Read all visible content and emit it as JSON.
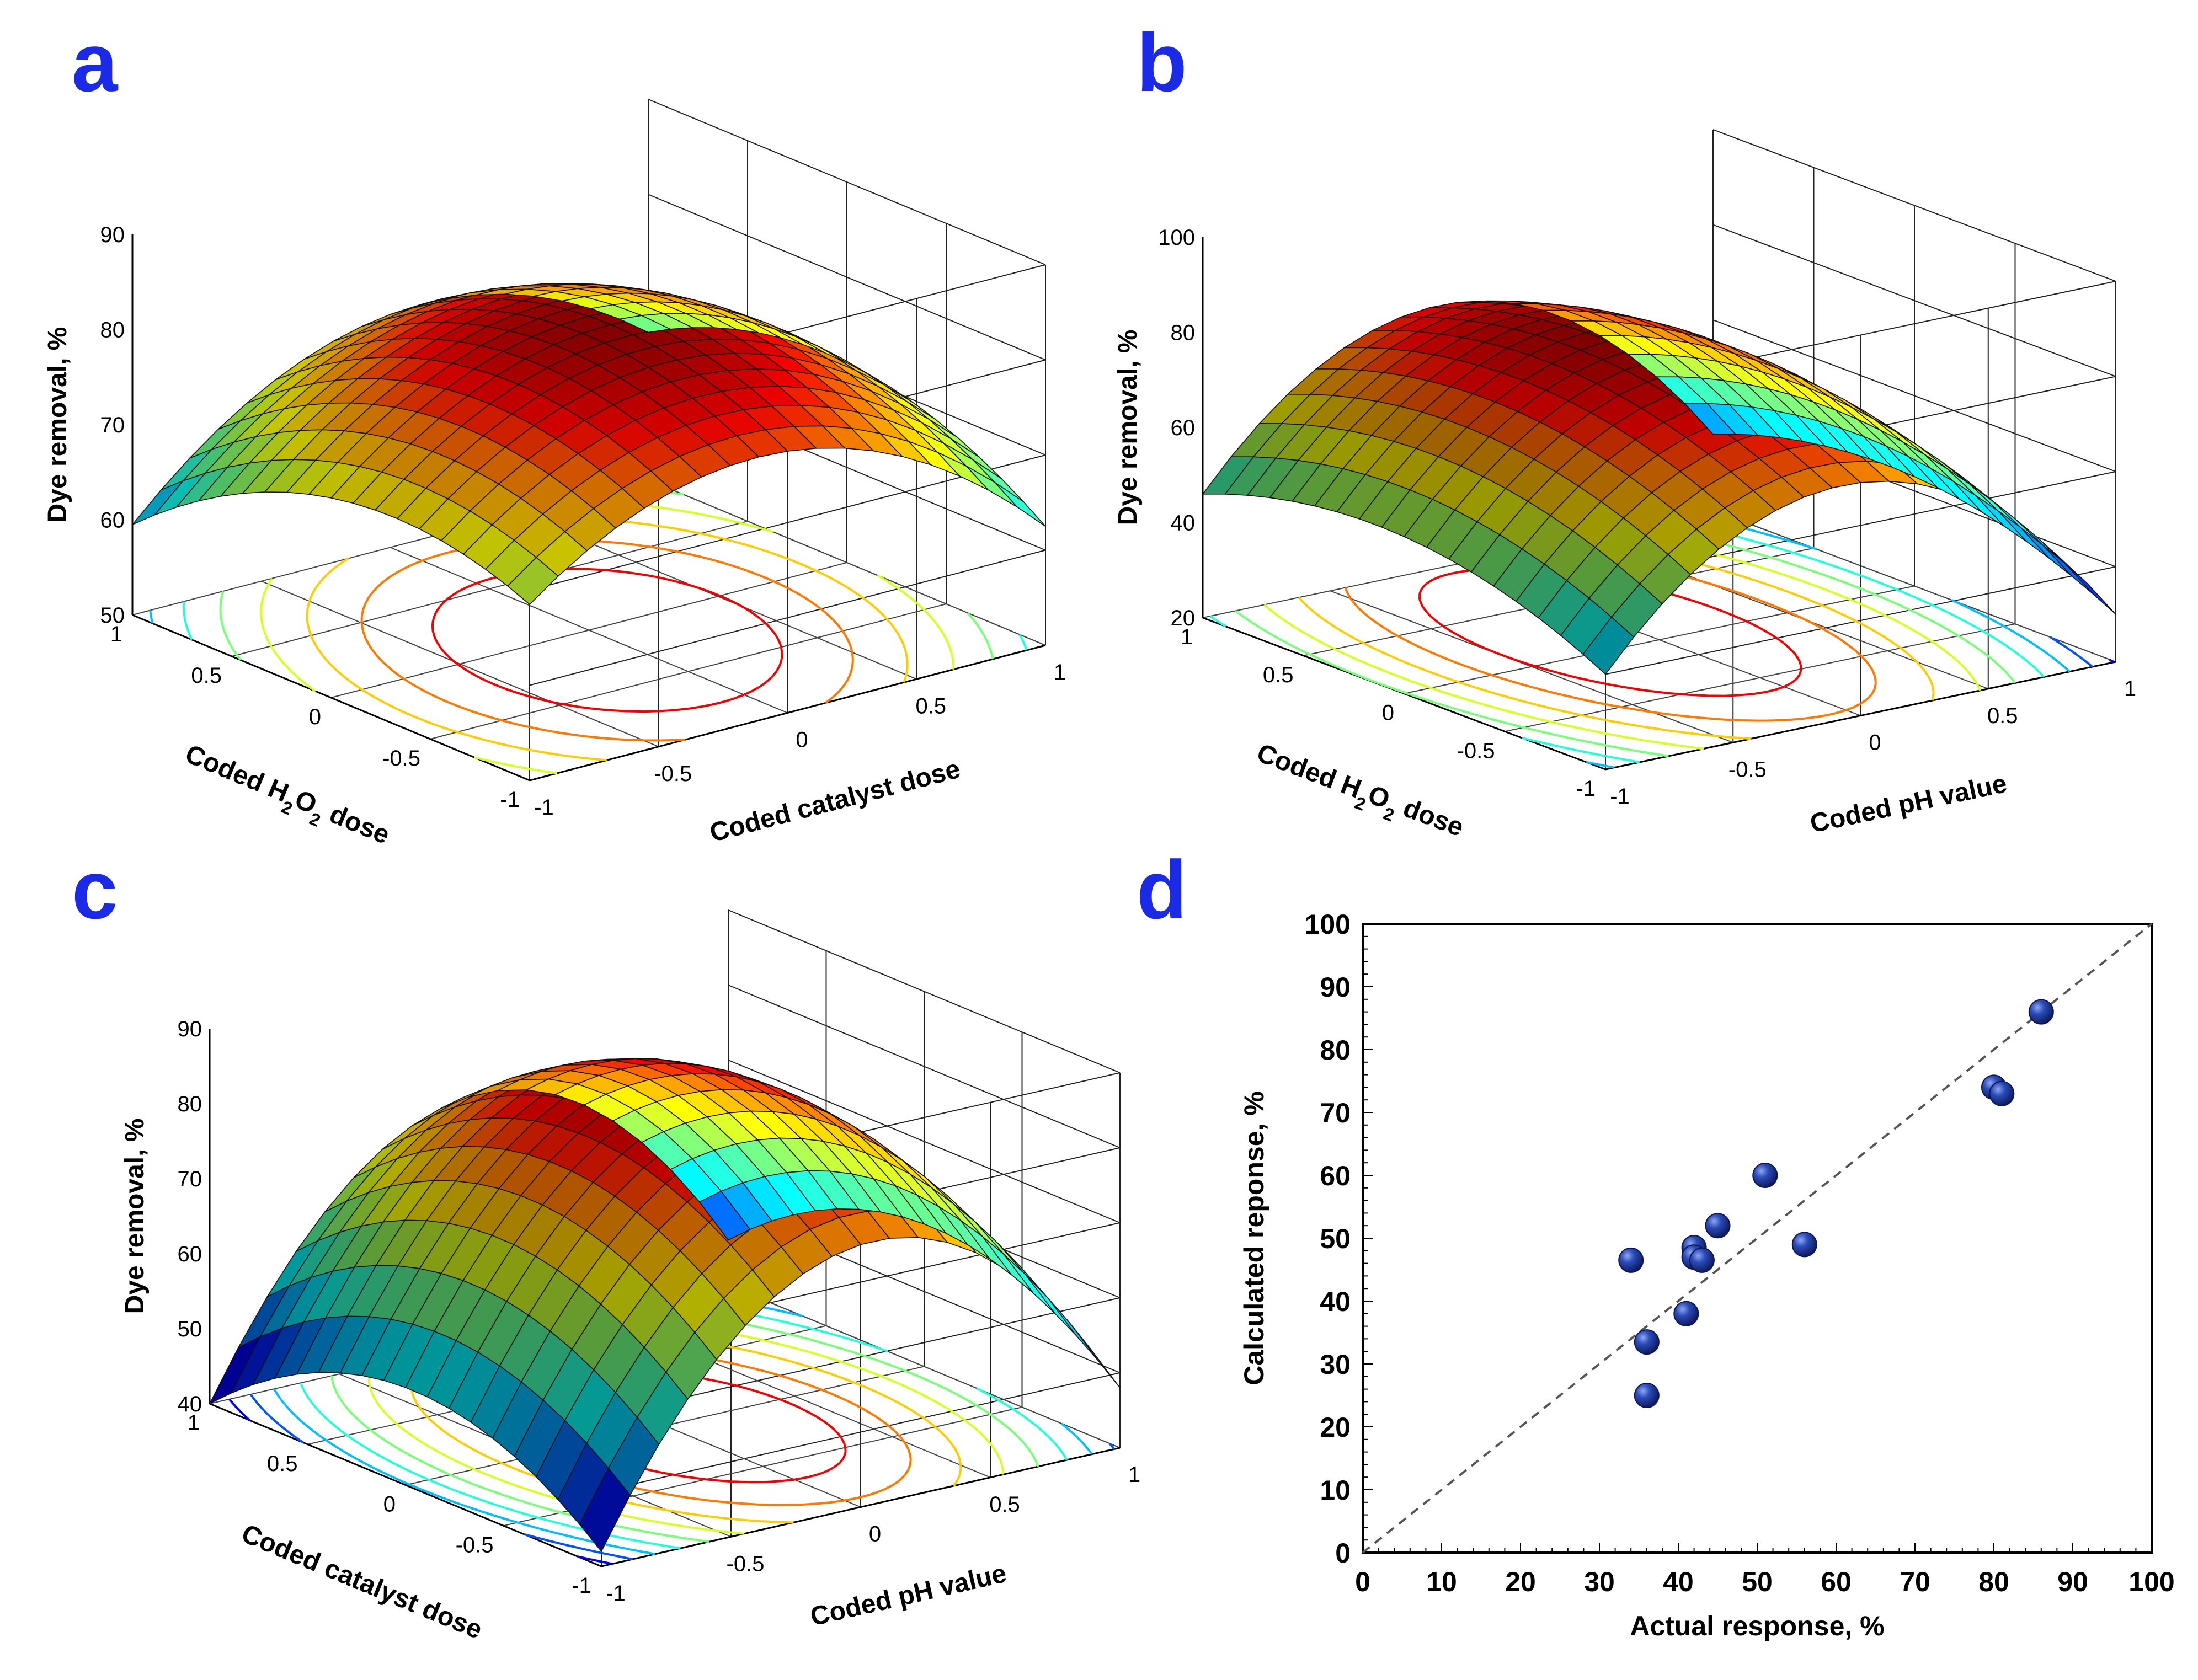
{
  "figure": {
    "panel_letters": [
      "a",
      "b",
      "c",
      "d"
    ]
  },
  "chart_data": [
    {
      "type": "surface",
      "panel": "a",
      "zlabel": "Dye removal, %",
      "xlabel": "Coded H2O2 dose",
      "ylabel": "Coded catalyst dose",
      "zlim": [
        50,
        90
      ],
      "zticks": [
        "50",
        "60",
        "70",
        "80",
        "90"
      ],
      "xticks": [
        "-1",
        "-0.5",
        "0",
        "0.5",
        "1"
      ],
      "yticks": [
        "-1",
        "-0.5",
        "0",
        "0.5",
        "1"
      ],
      "surface_range": [
        52,
        83
      ]
    },
    {
      "type": "surface",
      "panel": "b",
      "zlabel": "Dye removal, %",
      "xlabel": "Coded H2O2 dose",
      "ylabel": "Coded pH value",
      "zlim": [
        20,
        100
      ],
      "zticks": [
        "20",
        "40",
        "60",
        "80",
        "100"
      ],
      "xticks": [
        "-1",
        "-0.5",
        "0",
        "0.5",
        "1"
      ],
      "yticks": [
        "-1",
        "-0.5",
        "0",
        "0.5",
        "1"
      ],
      "surface_range": [
        25,
        82
      ]
    },
    {
      "type": "surface",
      "panel": "c",
      "zlabel": "Dye removal, %",
      "xlabel": "Coded catalyst dose",
      "ylabel": "Coded pH value",
      "zlim": [
        40,
        90
      ],
      "zticks": [
        "40",
        "50",
        "60",
        "70",
        "80",
        "90"
      ],
      "xticks": [
        "-1",
        "-0.5",
        "0",
        "0.5",
        "1"
      ],
      "yticks": [
        "-1",
        "-0.5",
        "0",
        "0.5",
        "1"
      ],
      "surface_range": [
        40,
        86
      ]
    },
    {
      "type": "scatter",
      "panel": "d",
      "xlabel": "Actual response, %",
      "ylabel": "Calculated reponse, %",
      "xlim": [
        0,
        100
      ],
      "ylim": [
        0,
        100
      ],
      "xticks": [
        "0",
        "10",
        "20",
        "30",
        "40",
        "50",
        "60",
        "70",
        "80",
        "90",
        "100"
      ],
      "yticks": [
        "0",
        "10",
        "20",
        "30",
        "40",
        "50",
        "60",
        "70",
        "80",
        "90",
        "100"
      ],
      "reference_line": "y = x (dashed)",
      "points": [
        {
          "x": 34,
          "y": 46.5
        },
        {
          "x": 36,
          "y": 33.5
        },
        {
          "x": 36,
          "y": 25
        },
        {
          "x": 41,
          "y": 38
        },
        {
          "x": 42,
          "y": 48.5
        },
        {
          "x": 42,
          "y": 47
        },
        {
          "x": 43,
          "y": 46.5
        },
        {
          "x": 45,
          "y": 52
        },
        {
          "x": 51,
          "y": 60
        },
        {
          "x": 56,
          "y": 49
        },
        {
          "x": 80,
          "y": 74
        },
        {
          "x": 81,
          "y": 73
        },
        {
          "x": 86,
          "y": 86
        }
      ],
      "colors": {
        "marker": "#1f3a9e",
        "marker_edge": "#0b1550",
        "reference_line": "#555555"
      }
    }
  ]
}
